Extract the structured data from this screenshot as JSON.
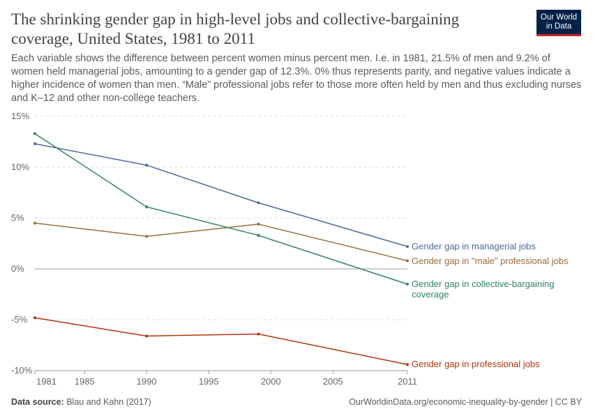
{
  "title": "The shrinking gender gap in high-level jobs and collective-bargaining coverage, United States, 1981 to 2011",
  "subtitle": "Each variable shows the difference between percent women minus percent men. I.e. in 1981, 21.5% of men and 9.2% of women held managerial jobs, amounting to a gender gap of 12.3%. 0% thus represents parity, and negative values indicate a higher incidence of women than men. “Male” professional jobs refer to those more often held by men and thus excluding nurses and K–12 and other non-college teachers.",
  "logo": "Our World in Data",
  "footer": {
    "source_label": "Data source:",
    "source": "Blau and Kahn (2017)",
    "url": "OurWorldinData.org/economic-inequality-by-gender | CC BY"
  },
  "chart_data": {
    "type": "line",
    "x": [
      1981,
      1990,
      1999,
      2011
    ],
    "xticks": [
      1981,
      1985,
      1990,
      1995,
      2000,
      2005,
      2011
    ],
    "yticks": [
      -10,
      -5,
      0,
      5,
      10,
      15
    ],
    "ylim": [
      -10,
      15
    ],
    "xlim": [
      1981,
      2011
    ],
    "yunit": "%",
    "grid": "horizontal dashed",
    "legend": "line-end labels right",
    "series": [
      {
        "name": "Gender gap in managerial jobs",
        "color": "#4c6a9c",
        "values": [
          12.3,
          10.2,
          6.5,
          2.2
        ]
      },
      {
        "name": "Gender gap in \"male\" professional jobs",
        "color": "#996d39",
        "values": [
          4.5,
          3.2,
          4.4,
          0.8
        ]
      },
      {
        "name": "Gender gap in collective-bargaining coverage",
        "color": "#2c8465",
        "values": [
          13.3,
          6.1,
          3.3,
          -1.5
        ]
      },
      {
        "name": "Gender gap in professional jobs",
        "color": "#b13507",
        "values": [
          -4.8,
          -6.6,
          -6.4,
          -9.4
        ]
      }
    ]
  }
}
